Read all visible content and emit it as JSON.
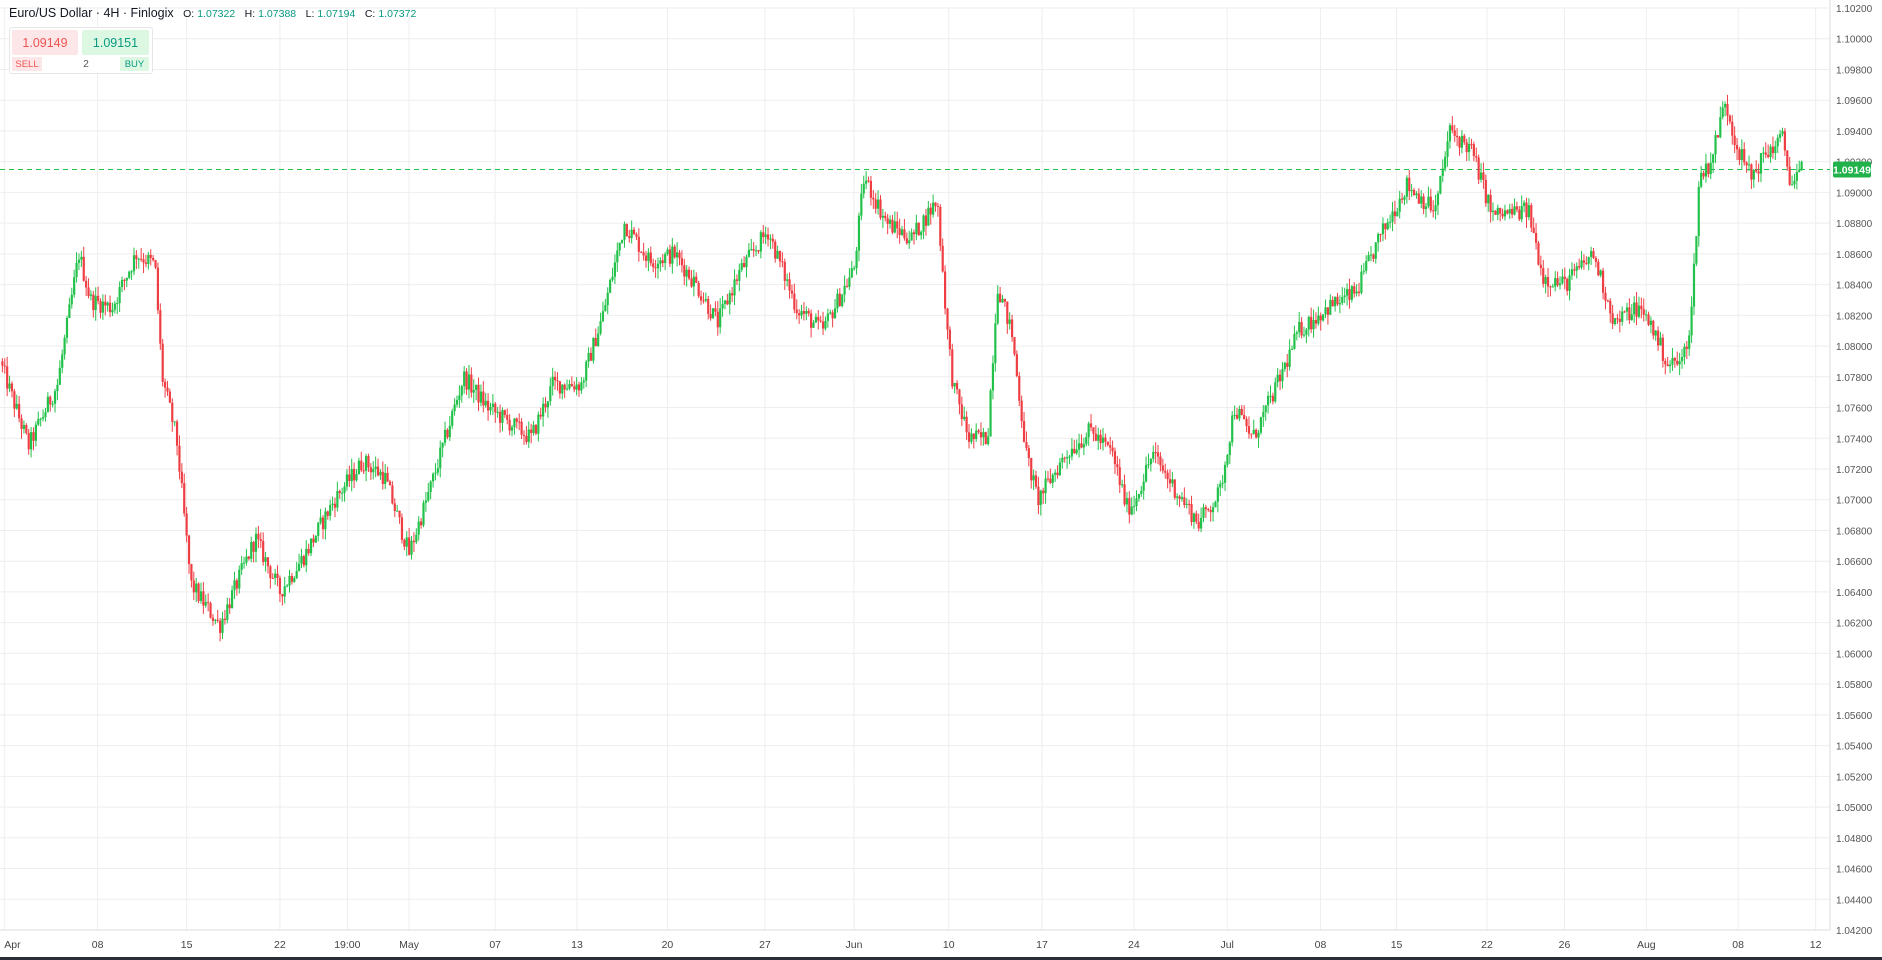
{
  "legend": {
    "title": "Euro/US Dollar · 4H · Finlogix",
    "o_label": "O:",
    "o_value": "1.07322",
    "h_label": "H:",
    "h_value": "1.07388",
    "l_label": "L:",
    "l_value": "1.07194",
    "c_label": "C:",
    "c_value": "1.07372"
  },
  "trade": {
    "sell_price": "1.09149",
    "buy_price": "1.09151",
    "sell_label": "SELL",
    "buy_label": "BUY",
    "quantity": "2"
  },
  "colors": {
    "up": "#22c24a",
    "down": "#ef3e43",
    "grid": "#eeeeee",
    "price_line": "#22c24a",
    "price_badge": "#22b24c"
  },
  "chart_data": {
    "type": "candlestick",
    "ylim": [
      1.042,
      1.102
    ],
    "y_ticks": [
      "1.04200",
      "1.04400",
      "1.04600",
      "1.04800",
      "1.05000",
      "1.05200",
      "1.05400",
      "1.05600",
      "1.05800",
      "1.06000",
      "1.06200",
      "1.06400",
      "1.06600",
      "1.06800",
      "1.07000",
      "1.07200",
      "1.07400",
      "1.07600",
      "1.07800",
      "1.08000",
      "1.08200",
      "1.08400",
      "1.08600",
      "1.08800",
      "1.09000",
      "1.09200",
      "1.09400",
      "1.09600",
      "1.09800",
      "1.10000",
      "1.10200"
    ],
    "x_ticks": [
      "Apr",
      "08",
      "15",
      "22",
      "19:00",
      "May",
      "07",
      "13",
      "20",
      "27",
      "Jun",
      "10",
      "17",
      "24",
      "Jul",
      "08",
      "15",
      "22",
      "26",
      "Aug",
      "08",
      "12"
    ],
    "x_tick_positions": [
      0.3,
      6.8,
      13.0,
      19.5,
      24.2,
      28.5,
      34.5,
      40.2,
      46.5,
      53.3,
      59.5,
      66.1,
      72.6,
      79.0,
      85.5,
      92.0,
      97.3,
      103.6,
      109.0,
      114.7,
      121.1,
      126.5
    ],
    "x_domain": [
      0,
      127.5
    ],
    "current_price": 1.09149,
    "current_price_label": "1.09149",
    "anchors": [
      [
        0,
        1.079
      ],
      [
        2.0,
        1.0735
      ],
      [
        4.0,
        1.0775
      ],
      [
        5.5,
        1.086
      ],
      [
        6.3,
        1.083
      ],
      [
        7.8,
        1.0825
      ],
      [
        9.5,
        1.086
      ],
      [
        10.8,
        1.0853
      ],
      [
        11.3,
        1.078
      ],
      [
        12.3,
        1.074
      ],
      [
        13.3,
        1.0645
      ],
      [
        15.3,
        1.0618
      ],
      [
        17.8,
        1.0675
      ],
      [
        19.5,
        1.064
      ],
      [
        21.3,
        1.0665
      ],
      [
        23.3,
        1.07
      ],
      [
        25.3,
        1.0725
      ],
      [
        26.8,
        1.0715
      ],
      [
        28.5,
        1.0665
      ],
      [
        30.0,
        1.0708
      ],
      [
        32.3,
        1.078
      ],
      [
        34.0,
        1.076
      ],
      [
        35.5,
        1.075
      ],
      [
        37.0,
        1.074
      ],
      [
        38.5,
        1.0775
      ],
      [
        40.5,
        1.0775
      ],
      [
        42.0,
        1.082
      ],
      [
        43.5,
        1.088
      ],
      [
        45.3,
        1.0855
      ],
      [
        47.0,
        1.086
      ],
      [
        48.5,
        1.084
      ],
      [
        50.0,
        1.0815
      ],
      [
        51.5,
        1.0848
      ],
      [
        53.5,
        1.0875
      ],
      [
        55.5,
        1.0825
      ],
      [
        57.3,
        1.081
      ],
      [
        59.5,
        1.085
      ],
      [
        60.2,
        1.091
      ],
      [
        61.8,
        1.088
      ],
      [
        63.5,
        1.087
      ],
      [
        65.3,
        1.0895
      ],
      [
        66.0,
        1.081
      ],
      [
        66.4,
        1.0775
      ],
      [
        67.5,
        1.074
      ],
      [
        68.8,
        1.074
      ],
      [
        69.5,
        1.084
      ],
      [
        70.5,
        1.0808
      ],
      [
        71.5,
        1.073
      ],
      [
        72.3,
        1.07
      ],
      [
        74.3,
        1.073
      ],
      [
        76.0,
        1.0745
      ],
      [
        77.5,
        1.073
      ],
      [
        78.5,
        1.0695
      ],
      [
        79.0,
        1.0698
      ],
      [
        80.3,
        1.073
      ],
      [
        82.0,
        1.0705
      ],
      [
        83.5,
        1.0685
      ],
      [
        85.0,
        1.0705
      ],
      [
        86.0,
        1.076
      ],
      [
        87.3,
        1.074
      ],
      [
        89.0,
        1.0775
      ],
      [
        90.5,
        1.081
      ],
      [
        92.5,
        1.0825
      ],
      [
        94.5,
        1.0835
      ],
      [
        96.0,
        1.0868
      ],
      [
        98.0,
        1.0905
      ],
      [
        100.0,
        1.0888
      ],
      [
        101.0,
        1.094
      ],
      [
        102.5,
        1.0928
      ],
      [
        104.0,
        1.0885
      ],
      [
        106.5,
        1.0888
      ],
      [
        107.5,
        1.0845
      ],
      [
        109.0,
        1.084
      ],
      [
        111.0,
        1.086
      ],
      [
        112.5,
        1.0815
      ],
      [
        114.0,
        1.0825
      ],
      [
        115.0,
        1.0815
      ],
      [
        116.2,
        1.0788
      ],
      [
        117.2,
        1.079
      ],
      [
        117.8,
        1.0815
      ],
      [
        118.4,
        1.091
      ],
      [
        119.2,
        1.092
      ],
      [
        120.2,
        1.096
      ],
      [
        121.0,
        1.093
      ],
      [
        122.0,
        1.091
      ],
      [
        123.0,
        1.0925
      ],
      [
        124.2,
        1.0935
      ],
      [
        124.8,
        1.0905
      ],
      [
        125.6,
        1.0915
      ]
    ]
  }
}
